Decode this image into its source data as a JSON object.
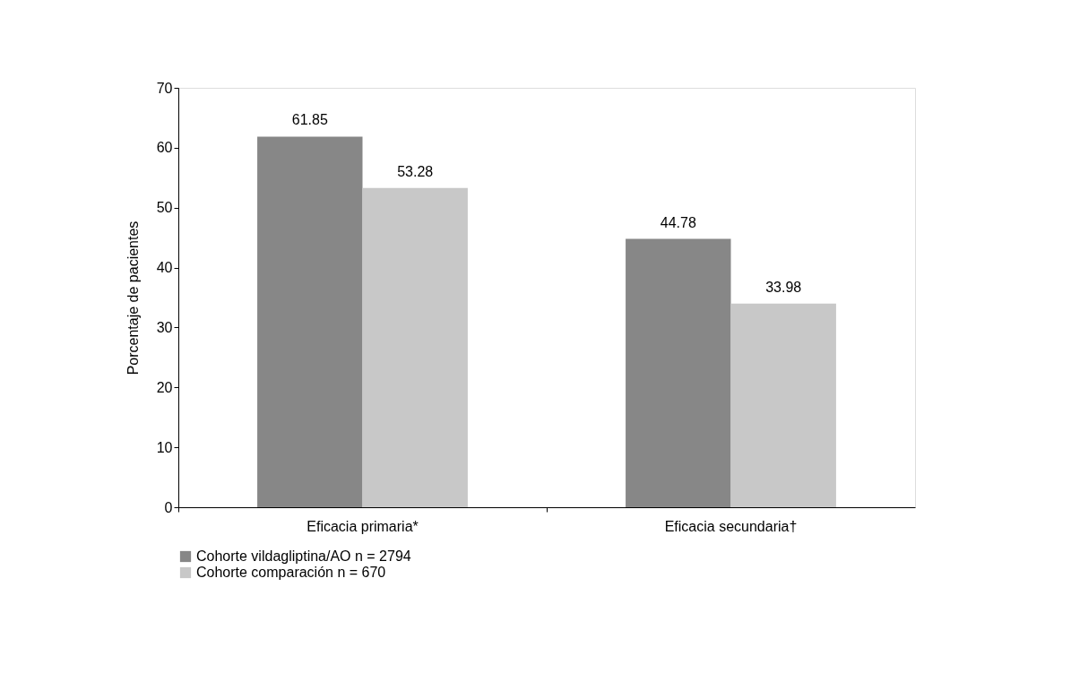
{
  "chart_data": {
    "type": "bar",
    "ylabel": "Porcentaje de pacientes",
    "categories": [
      "Eficacia primaria*",
      "Eficacia secundaria†"
    ],
    "series": [
      {
        "name": "Cohorte vildagliptina/AO n = 2794",
        "color": "#878787",
        "values": [
          61.85,
          44.78
        ]
      },
      {
        "name": "Cohorte comparación n = 670",
        "color": "#c8c8c8",
        "values": [
          53.28,
          33.98
        ]
      }
    ],
    "ylim": [
      0,
      70
    ],
    "yticks": [
      0,
      10,
      20,
      30,
      40,
      50,
      60,
      70
    ],
    "grid": false,
    "legend": "bottom",
    "data_labels": true
  }
}
